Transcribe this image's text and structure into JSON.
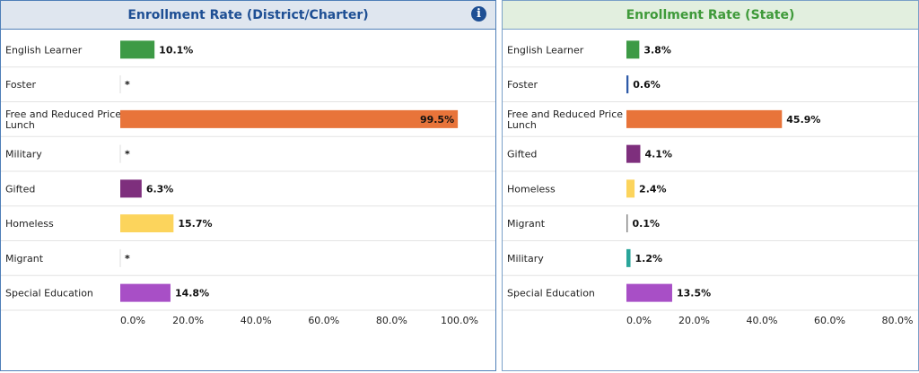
{
  "colors": {
    "English Learner": "#3d9a45",
    "Foster": "#2e5aa8",
    "Free and Reduced Price Lunch": "#e8743a",
    "Military": "#2aa59a",
    "Gifted": "#7e2f7d",
    "Homeless": "#fcd45c",
    "Migrant": "#888888",
    "Special Education": "#a84fc6"
  },
  "chart_data": [
    {
      "type": "bar",
      "orientation": "horizontal",
      "title": "Enrollment Rate (District/Charter)",
      "categories": [
        "English Learner",
        "Foster",
        "Free and Reduced Price Lunch",
        "Military",
        "Gifted",
        "Homeless",
        "Migrant",
        "Special Education"
      ],
      "values": [
        10.1,
        null,
        99.5,
        null,
        6.3,
        15.7,
        null,
        14.8
      ],
      "value_labels": [
        "10.1%",
        "*",
        "99.5%",
        "*",
        "6.3%",
        "15.7%",
        "*",
        "14.8%"
      ],
      "xlim": [
        0,
        100
      ],
      "ticks": [
        "0.0%",
        "20.0%",
        "40.0%",
        "60.0%",
        "80.0%",
        "100.0%"
      ],
      "tick_values": [
        0,
        20,
        40,
        60,
        80,
        100
      ],
      "info_icon": "info-icon"
    },
    {
      "type": "bar",
      "orientation": "horizontal",
      "title": "Enrollment Rate (State)",
      "categories": [
        "English Learner",
        "Foster",
        "Free and Reduced Price Lunch",
        "Gifted",
        "Homeless",
        "Migrant",
        "Military",
        "Special Education"
      ],
      "values": [
        3.8,
        0.6,
        45.9,
        4.1,
        2.4,
        0.1,
        1.2,
        13.5
      ],
      "value_labels": [
        "3.8%",
        "0.6%",
        "45.9%",
        "4.1%",
        "2.4%",
        "0.1%",
        "1.2%",
        "13.5%"
      ],
      "xlim": [
        0,
        80
      ],
      "ticks": [
        "0.0%",
        "20.0%",
        "40.0%",
        "60.0%",
        "80.0%"
      ],
      "tick_values": [
        0,
        20,
        40,
        60,
        80
      ]
    }
  ]
}
